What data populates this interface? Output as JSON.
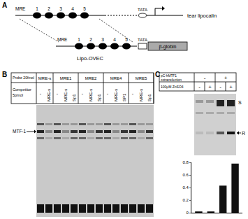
{
  "panel_a": {
    "label": "A",
    "gene": {
      "elements": [
        "MRE",
        "1",
        "2",
        "3",
        "4",
        "5"
      ],
      "tata": "TATA",
      "name": "tear lipocalin"
    },
    "construct": {
      "elements": [
        "MRE",
        "1",
        "2",
        "3",
        "4",
        "5"
      ],
      "tata": "TATA",
      "reporter": "β-globin",
      "name": "Lipo-OVEC"
    }
  },
  "panel_b": {
    "label": "B",
    "header": [
      "Probe 20fmol",
      "MRE-s",
      "MRE1",
      "MRE2",
      "MRE4",
      "MRE5"
    ],
    "competitor_label": "Competitor 5pmol",
    "competitors": [
      [
        "-",
        "MRE-s"
      ],
      [
        "-",
        "MRE-s",
        "Sp1"
      ],
      [
        "-",
        "MRE-s",
        "Sp1"
      ],
      [
        "-",
        "MRE-s",
        "SP1"
      ],
      [
        "-",
        "MRE-s",
        "Sp1"
      ]
    ],
    "band": "MTF-1"
  },
  "panel_c": {
    "label": "C",
    "rows": [
      {
        "label": "pC-hMTF1 cotransfection",
        "cells": [
          "-",
          "+"
        ]
      },
      {
        "label": "100μM ZnSO4",
        "cells": [
          "-",
          "+",
          "-",
          "+"
        ]
      }
    ],
    "bands": [
      "S",
      "R"
    ]
  },
  "chart_data": {
    "type": "bar",
    "categories": [
      null,
      null,
      null,
      null
    ],
    "values": [
      0.02,
      0.02,
      0.43,
      0.78
    ],
    "color": "#111111",
    "ylim": [
      0,
      0.8
    ],
    "yticks": [
      0,
      0.2,
      0.4,
      0.6,
      0.8
    ],
    "grid": false,
    "tick_labels": "y"
  }
}
